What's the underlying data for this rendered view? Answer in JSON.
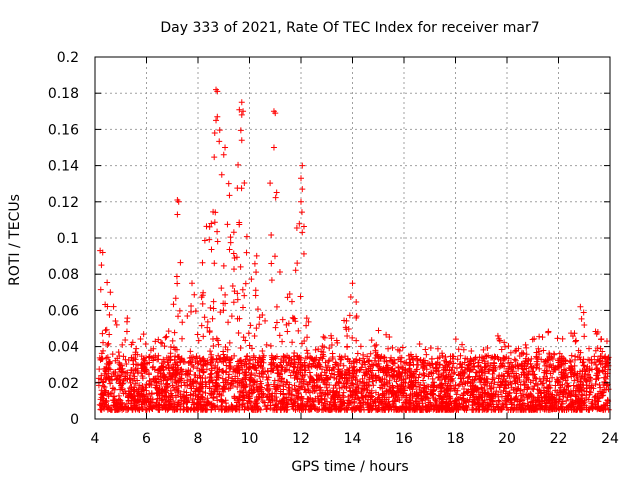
{
  "chart_data": {
    "type": "scatter",
    "title": "Day 333 of 2021, Rate Of TEC Index for receiver mar7",
    "xlabel": "GPS time / hours",
    "ylabel": "ROTI / TECUs",
    "xlim": [
      4,
      24
    ],
    "ylim": [
      0,
      0.2
    ],
    "x_ticks": [
      "4",
      "6",
      "8",
      "10",
      "12",
      "14",
      "16",
      "18",
      "20",
      "22",
      "24"
    ],
    "y_ticks": [
      "0",
      "0.02",
      "0.04",
      "0.06",
      "0.08",
      "0.1",
      "0.12",
      "0.14",
      "0.16",
      "0.18",
      "0.2"
    ],
    "grid": true,
    "marker": "+",
    "color": "#ff0000",
    "baseline_band": [
      0.005,
      0.035
    ],
    "envelope": {
      "x": [
        4.0,
        4.2,
        4.5,
        5.0,
        5.5,
        6.0,
        6.5,
        7.0,
        7.2,
        7.5,
        8.0,
        8.5,
        8.7,
        9.0,
        9.3,
        9.6,
        10.0,
        10.5,
        10.9,
        11.2,
        11.6,
        12.0,
        12.3,
        12.6,
        13.0,
        13.5,
        14.0,
        14.5,
        15.0,
        15.5,
        16.0,
        16.5,
        17.0,
        17.5,
        18.0,
        18.5,
        19.0,
        19.5,
        20.0,
        20.5,
        21.0,
        21.5,
        22.0,
        22.5,
        23.0,
        23.5,
        24.0
      ],
      "values": [
        0.045,
        0.09,
        0.075,
        0.06,
        0.055,
        0.045,
        0.05,
        0.05,
        0.12,
        0.07,
        0.085,
        0.12,
        0.18,
        0.15,
        0.13,
        0.175,
        0.1,
        0.09,
        0.17,
        0.1,
        0.08,
        0.14,
        0.06,
        0.05,
        0.045,
        0.05,
        0.075,
        0.04,
        0.05,
        0.045,
        0.04,
        0.045,
        0.04,
        0.04,
        0.045,
        0.04,
        0.04,
        0.045,
        0.05,
        0.045,
        0.045,
        0.05,
        0.045,
        0.05,
        0.06,
        0.055,
        0.04
      ]
    },
    "peaks": [
      {
        "x": 4.2,
        "y": 0.093
      },
      {
        "x": 4.3,
        "y": 0.092
      },
      {
        "x": 4.25,
        "y": 0.085
      },
      {
        "x": 7.2,
        "y": 0.121
      },
      {
        "x": 7.25,
        "y": 0.12
      },
      {
        "x": 7.2,
        "y": 0.113
      },
      {
        "x": 8.7,
        "y": 0.182
      },
      {
        "x": 8.75,
        "y": 0.181
      },
      {
        "x": 8.75,
        "y": 0.167
      },
      {
        "x": 8.7,
        "y": 0.165
      },
      {
        "x": 8.65,
        "y": 0.158
      },
      {
        "x": 9.05,
        "y": 0.15
      },
      {
        "x": 9.0,
        "y": 0.146
      },
      {
        "x": 9.7,
        "y": 0.175
      },
      {
        "x": 9.75,
        "y": 0.17
      },
      {
        "x": 9.7,
        "y": 0.168
      },
      {
        "x": 9.7,
        "y": 0.154
      },
      {
        "x": 10.95,
        "y": 0.17
      },
      {
        "x": 11.0,
        "y": 0.169
      },
      {
        "x": 10.95,
        "y": 0.15
      },
      {
        "x": 12.05,
        "y": 0.14
      },
      {
        "x": 12.0,
        "y": 0.133
      },
      {
        "x": 12.05,
        "y": 0.127
      },
      {
        "x": 12.0,
        "y": 0.12
      },
      {
        "x": 14.0,
        "y": 0.075
      },
      {
        "x": 22.85,
        "y": 0.062
      }
    ]
  }
}
